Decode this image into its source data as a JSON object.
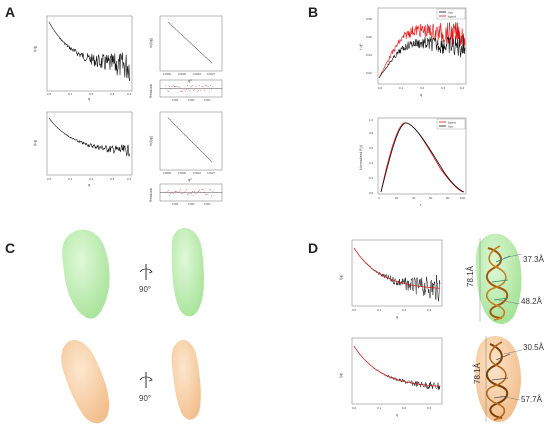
{
  "panels": {
    "a": {
      "letter": "A"
    },
    "b": {
      "letter": "B"
    },
    "c": {
      "letter": "C"
    },
    "d": {
      "letter": "D"
    }
  },
  "panel_a": {
    "main_xlabel": "q",
    "main_ylabel": "I(q)",
    "main_xticks": [
      "0.0",
      "0.1",
      "0.2",
      "0.3",
      "0.4"
    ],
    "guinier_ylabel": "ln(I(q))",
    "guinier_xlabel": "q²",
    "resid_ylabel": "Residuals",
    "top_guinier_xticks": [
      "0.0000",
      "0.0009",
      "0.0018",
      "0.0027",
      "0.0036"
    ],
    "top_resid_xticks": [
      "0.001",
      "0.002",
      "0.003"
    ],
    "bottom_guinier_xticks": [
      "0.0000",
      "0.0009",
      "0.0018",
      "0.0027",
      "0.0036"
    ],
    "bottom_resid_xticks": [
      "0.001",
      "0.002",
      "0.003"
    ]
  },
  "panel_b": {
    "kratky": {
      "ylabel": "I·q²",
      "xlabel": "q",
      "xticks": [
        "0.0",
        "0.1",
        "0.2",
        "0.3",
        "0.4"
      ],
      "yticks": [
        "0.02",
        "0.04",
        "0.06",
        "0.08"
      ],
      "legend": [
        "Apo",
        "ligand"
      ],
      "colors": {
        "apo": "#111111",
        "ligand": "#e01515"
      }
    },
    "pr": {
      "ylabel": "Normalized P(r)",
      "xlabel": "r",
      "xticks": [
        "0",
        "20",
        "40",
        "60",
        "80",
        "100"
      ],
      "yticks": [
        "0.0",
        "0.2",
        "0.4",
        "0.6",
        "0.8",
        "1.0"
      ],
      "legend": [
        "ligand",
        "Apo"
      ],
      "colors": {
        "ligand": "#e01515",
        "apo": "#111111"
      }
    }
  },
  "panel_c": {
    "rotation_top": "90°",
    "rotation_bottom": "90°",
    "colors": {
      "green": "#bff0b4",
      "orange": "#f7cfa4"
    }
  },
  "panel_d": {
    "fit_top": {
      "ylabel": "I(q)",
      "xlabel": "q",
      "xticks": [
        "0.0",
        "0.1",
        "0.2",
        "0.3"
      ]
    },
    "fit_bottom": {
      "ylabel": "I(q)",
      "xlabel": "q",
      "xticks": [
        "0.0",
        "0.1",
        "0.2",
        "0.3"
      ]
    },
    "top_model": {
      "height": "78.1Å",
      "width_upper": "37.3Å",
      "width_lower": "48.2Å"
    },
    "bottom_model": {
      "height": "78.1Å",
      "width_upper": "30.5Å",
      "width_lower": "57.7Å"
    }
  }
}
